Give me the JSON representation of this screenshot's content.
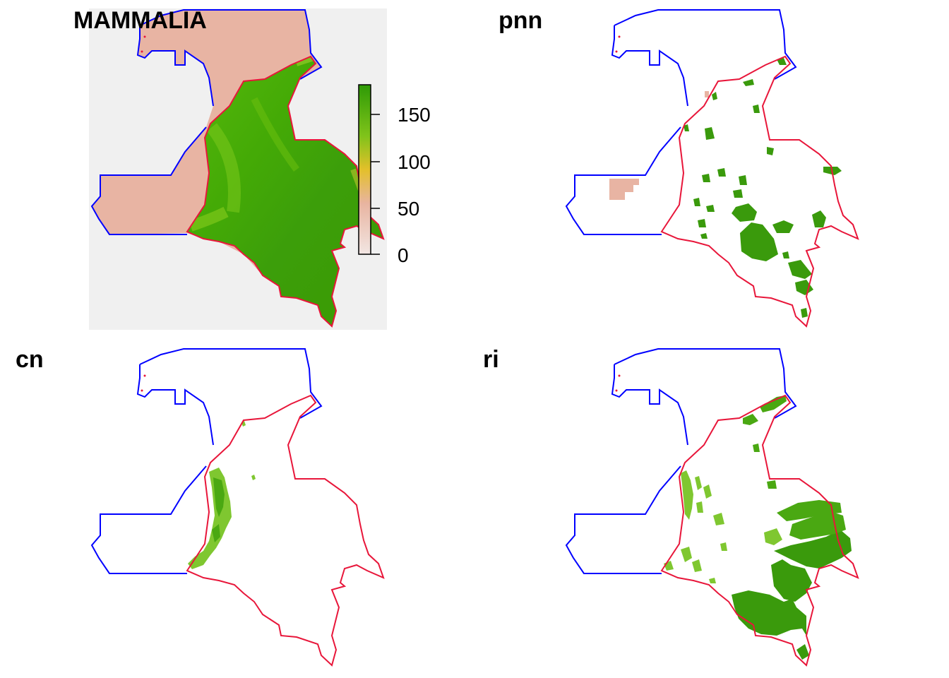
{
  "panels": [
    {
      "id": "mammalia",
      "title": "MAMMALIA",
      "fill": "richness-gradient",
      "background": "#f0f0f0"
    },
    {
      "id": "pnn",
      "title": "pnn",
      "fill": "protected-areas",
      "background": "#ffffff"
    },
    {
      "id": "cn",
      "title": "cn",
      "fill": "community-areas",
      "background": "#ffffff"
    },
    {
      "id": "ri",
      "title": "ri",
      "fill": "indigenous-reserves",
      "background": "#ffffff"
    }
  ],
  "legend": {
    "ticks": [
      "150",
      "100",
      "50",
      "0"
    ],
    "range": [
      0,
      180
    ],
    "colors": [
      "#f2e6e3",
      "#e8b4a0",
      "#e3c02a",
      "#7fc31a",
      "#2e9a06"
    ]
  },
  "colors": {
    "outer_boundary": "#0000ff",
    "country_boundary": "#e8163a",
    "raster_base": "#e8b4a3",
    "richness_high": "#3c9e0a",
    "richness_mid": "#66c000",
    "area_fill": "#3a9a0c",
    "area_light": "#7fc730"
  }
}
